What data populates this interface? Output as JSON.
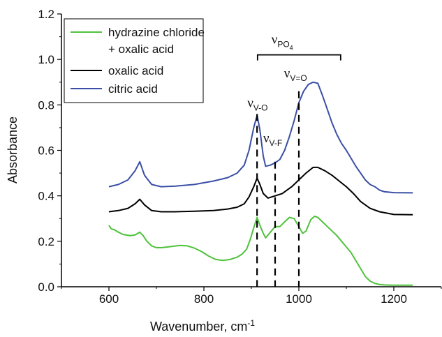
{
  "chart_data": {
    "type": "line",
    "xlabel": "Wavenumber, cm",
    "xlabel_sup": "-1",
    "ylabel": "Absorbance",
    "xlim": [
      500,
      1300
    ],
    "ylim": [
      0.0,
      1.2
    ],
    "xticks": [
      "600",
      "800",
      "1000",
      "1200"
    ],
    "yticks": [
      "0.0",
      "0.2",
      "0.4",
      "0.6",
      "0.8",
      "1.0",
      "1.2"
    ],
    "xtick_values": [
      600,
      800,
      1000,
      1200
    ],
    "ytick_values": [
      0.0,
      0.2,
      0.4,
      0.6,
      0.8,
      1.0,
      1.2
    ],
    "legend_position": "top-left",
    "series": [
      {
        "name": "hydrazine chloride",
        "name_line2": "+ oxalic acid",
        "color": "#4fc23c",
        "x": [
          600,
          605,
          612,
          620,
          630,
          645,
          655,
          665,
          672,
          680,
          690,
          700,
          710,
          720,
          735,
          750,
          765,
          780,
          795,
          810,
          825,
          840,
          855,
          870,
          880,
          890,
          898,
          905,
          912,
          918,
          925,
          930,
          940,
          950,
          960,
          970,
          980,
          990,
          1000,
          1008,
          1015,
          1025,
          1033,
          1040,
          1050,
          1060,
          1070,
          1080,
          1090,
          1100,
          1110,
          1120,
          1130,
          1140,
          1150,
          1160,
          1170,
          1180,
          1200,
          1240
        ],
        "y": [
          0.27,
          0.255,
          0.25,
          0.24,
          0.23,
          0.225,
          0.228,
          0.24,
          0.225,
          0.2,
          0.18,
          0.172,
          0.172,
          0.174,
          0.178,
          0.182,
          0.18,
          0.17,
          0.155,
          0.135,
          0.12,
          0.116,
          0.12,
          0.13,
          0.143,
          0.165,
          0.21,
          0.26,
          0.305,
          0.27,
          0.235,
          0.215,
          0.24,
          0.265,
          0.265,
          0.285,
          0.305,
          0.3,
          0.265,
          0.235,
          0.245,
          0.295,
          0.31,
          0.305,
          0.285,
          0.265,
          0.245,
          0.225,
          0.2,
          0.175,
          0.15,
          0.115,
          0.08,
          0.045,
          0.025,
          0.015,
          0.01,
          0.008,
          0.007,
          0.007
        ]
      },
      {
        "name": "oxalic acid",
        "color": "#000000",
        "x": [
          600,
          620,
          640,
          655,
          665,
          675,
          690,
          710,
          740,
          780,
          820,
          850,
          870,
          885,
          895,
          905,
          912,
          918,
          925,
          935,
          950,
          965,
          985,
          1000,
          1015,
          1030,
          1040,
          1055,
          1070,
          1085,
          1100,
          1115,
          1130,
          1150,
          1170,
          1200,
          1240
        ],
        "y": [
          0.33,
          0.335,
          0.345,
          0.365,
          0.385,
          0.36,
          0.335,
          0.33,
          0.33,
          0.332,
          0.335,
          0.342,
          0.35,
          0.365,
          0.395,
          0.44,
          0.478,
          0.45,
          0.41,
          0.39,
          0.4,
          0.41,
          0.44,
          0.47,
          0.5,
          0.525,
          0.525,
          0.51,
          0.49,
          0.465,
          0.44,
          0.41,
          0.375,
          0.345,
          0.33,
          0.318,
          0.317
        ]
      },
      {
        "name": "citric acid",
        "color": "#3a4fa5",
        "x": [
          600,
          620,
          640,
          655,
          665,
          675,
          690,
          710,
          740,
          780,
          820,
          850,
          870,
          885,
          895,
          905,
          912,
          918,
          925,
          930,
          940,
          950,
          960,
          970,
          980,
          990,
          1000,
          1010,
          1020,
          1030,
          1040,
          1050,
          1060,
          1070,
          1080,
          1090,
          1100,
          1110,
          1120,
          1130,
          1140,
          1150,
          1160,
          1170,
          1180,
          1200,
          1240
        ],
        "y": [
          0.44,
          0.45,
          0.47,
          0.51,
          0.55,
          0.49,
          0.45,
          0.44,
          0.443,
          0.45,
          0.465,
          0.48,
          0.5,
          0.535,
          0.6,
          0.7,
          0.755,
          0.69,
          0.575,
          0.53,
          0.535,
          0.545,
          0.56,
          0.6,
          0.66,
          0.73,
          0.81,
          0.86,
          0.89,
          0.9,
          0.895,
          0.84,
          0.78,
          0.72,
          0.67,
          0.63,
          0.6,
          0.565,
          0.53,
          0.5,
          0.47,
          0.45,
          0.44,
          0.425,
          0.418,
          0.414,
          0.413
        ]
      }
    ],
    "vlines": [
      912,
      950,
      1000
    ],
    "annotations": [
      {
        "main": "ν",
        "sub": "V-O",
        "x": 913,
        "y": 0.79
      },
      {
        "main": "ν",
        "sub": "V-F",
        "x": 945,
        "y": 0.635
      },
      {
        "main": "ν",
        "sub": "V=O",
        "x": 993,
        "y": 0.92
      },
      {
        "main": "ν",
        "sub": "PO",
        "subsub": "4",
        "x": 965,
        "y": 1.07
      }
    ],
    "bracket": {
      "x1": 913,
      "x2": 1088,
      "y": 1.02
    }
  }
}
